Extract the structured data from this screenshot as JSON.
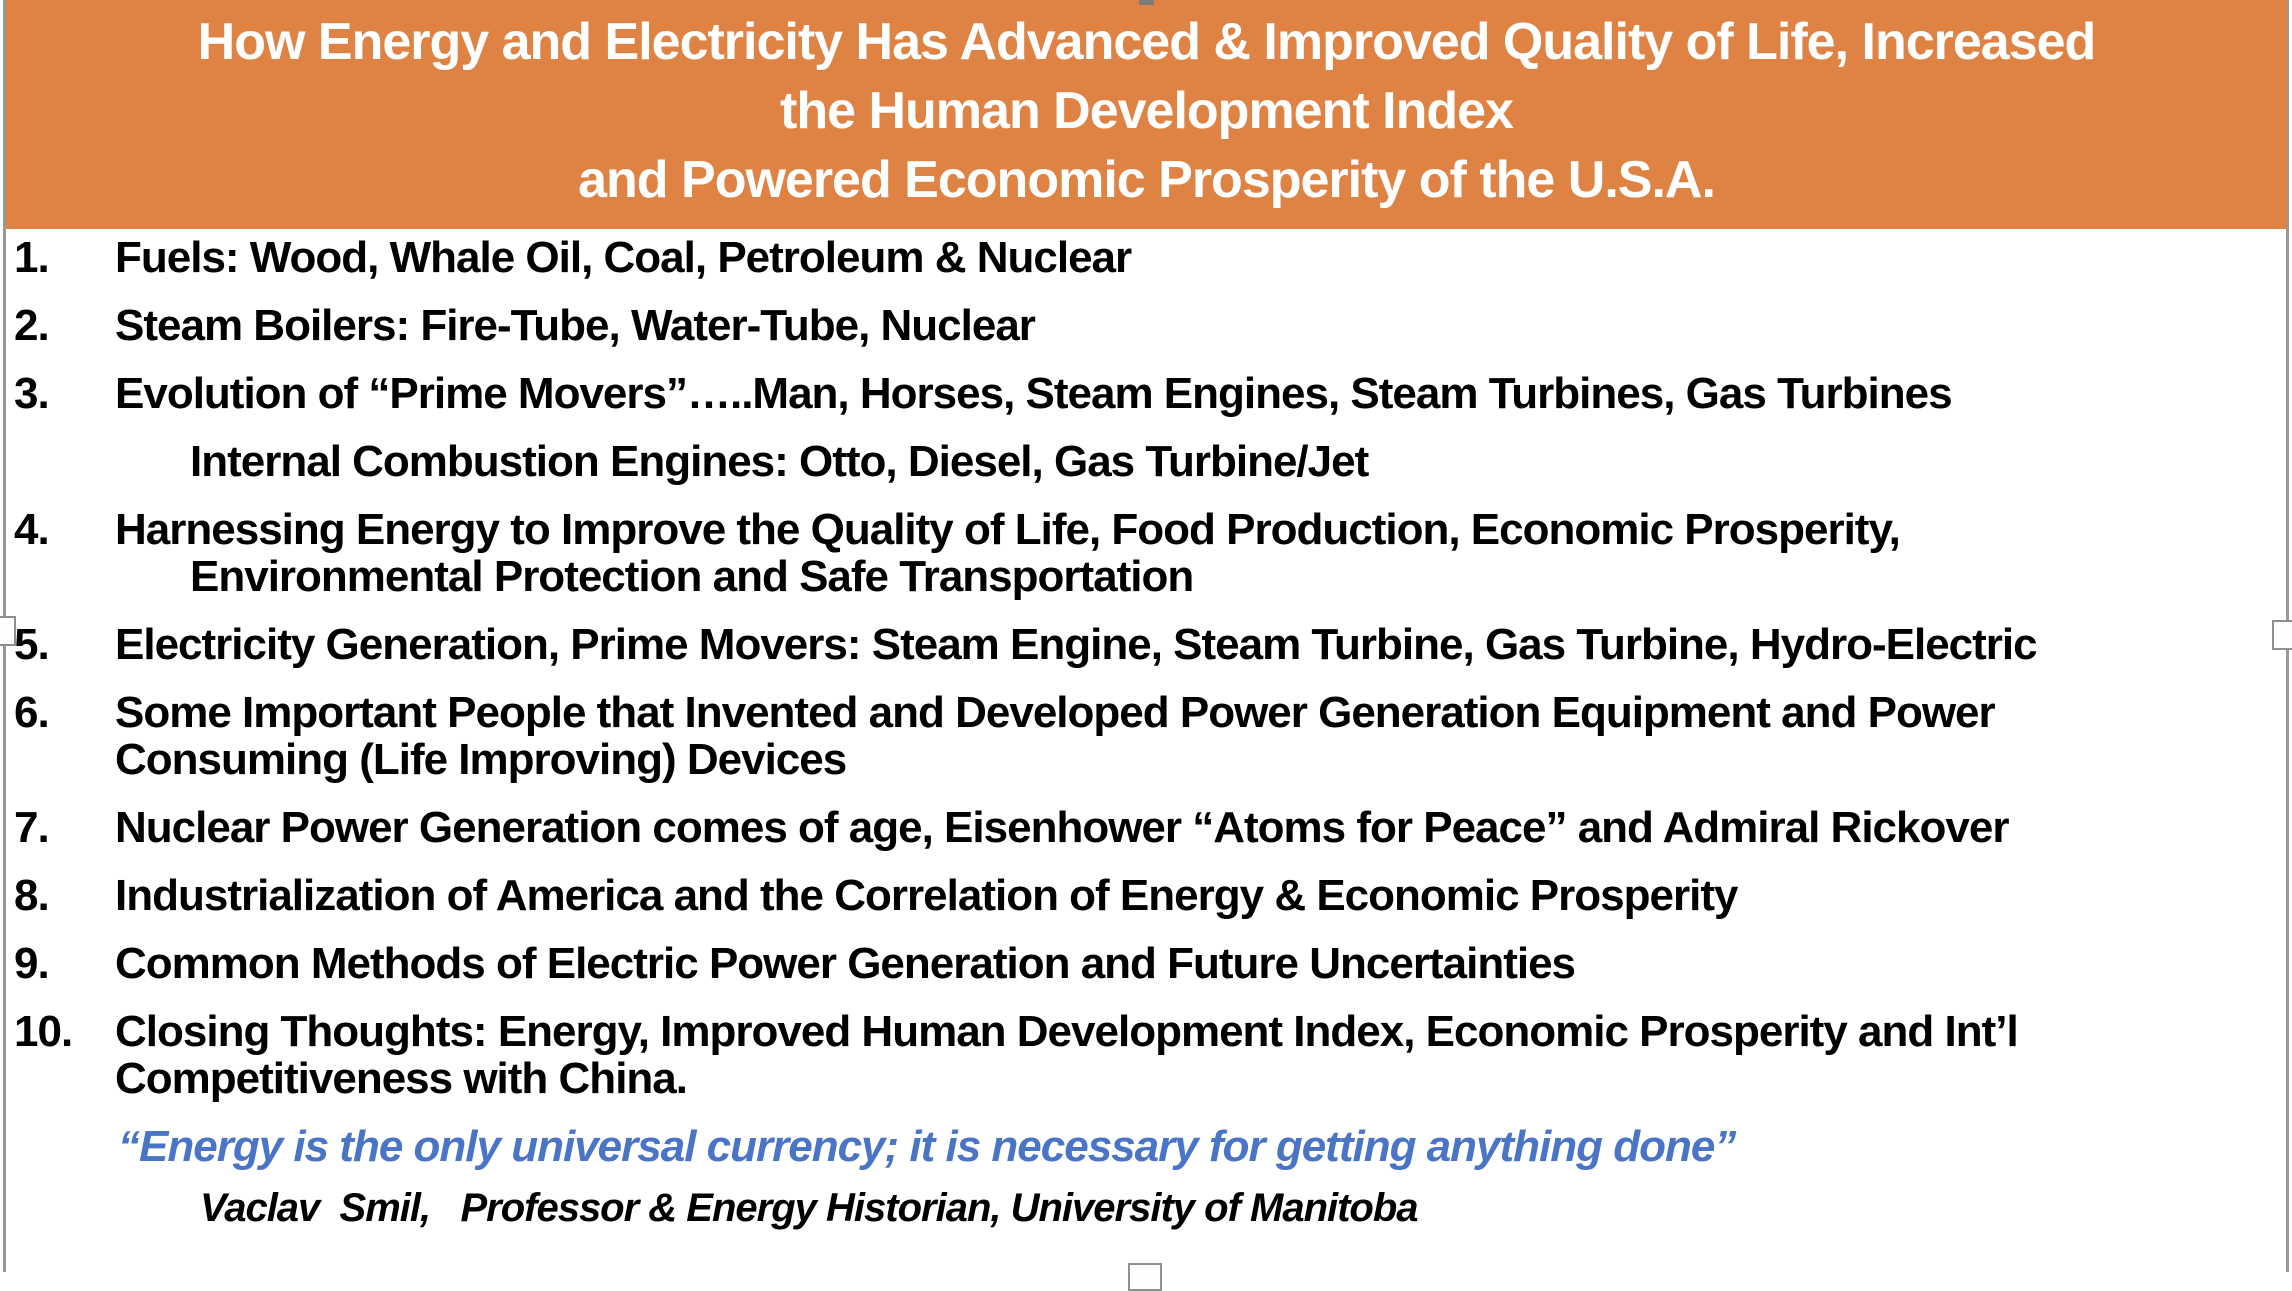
{
  "slide": {
    "title_lines": [
      "How Energy and Electricity Has Advanced & Improved Quality of Life, Increased",
      "the Human Development Index",
      "and Powered Economic Prosperity of the U.S.A."
    ],
    "items": [
      {
        "num": "1.",
        "lines": [
          {
            "t": "Fuels: Wood, Whale Oil, Coal, Petroleum & Nuclear",
            "ind": 0
          }
        ]
      },
      {
        "num": "2.",
        "lines": [
          {
            "t": "Steam Boilers: Fire-Tube, Water-Tube, Nuclear",
            "ind": 0
          }
        ]
      },
      {
        "num": "3.",
        "lines": [
          {
            "t": "Evolution of “Prime Movers”…..Man, Horses, Steam Engines, Steam Turbines, Gas Turbines",
            "ind": 0
          }
        ]
      },
      {
        "num": "",
        "lines": [
          {
            "t": "Internal Combustion Engines: Otto, Diesel, Gas Turbine/Jet",
            "ind": 1
          }
        ]
      },
      {
        "num": "4.",
        "lines": [
          {
            "t": "Harnessing Energy to Improve the Quality of Life, Food Production, Economic Prosperity,",
            "ind": 0
          },
          {
            "t": "Environmental Protection and Safe Transportation",
            "ind": 1
          }
        ]
      },
      {
        "num": "5.",
        "lines": [
          {
            "t": "Electricity Generation, Prime Movers: Steam Engine, Steam Turbine, Gas Turbine, Hydro-Electric",
            "ind": 0
          }
        ]
      },
      {
        "num": "6.",
        "lines": [
          {
            "t": "Some Important People that Invented and Developed Power Generation Equipment and Power",
            "ind": 0
          },
          {
            "t": "Consuming (Life Improving) Devices",
            "ind": 0
          }
        ]
      },
      {
        "num": "7.",
        "lines": [
          {
            "t": "Nuclear Power Generation comes of age, Eisenhower “Atoms for Peace” and Admiral Rickover",
            "ind": 0
          }
        ]
      },
      {
        "num": "8.",
        "lines": [
          {
            "t": "Industrialization of America and the Correlation of Energy & Economic Prosperity",
            "ind": 0
          }
        ]
      },
      {
        "num": "9.",
        "lines": [
          {
            "t": "Common Methods of Electric Power Generation and Future Uncertainties",
            "ind": 0
          }
        ]
      },
      {
        "num": "10.",
        "lines": [
          {
            "t": "Closing Thoughts: Energy, Improved Human Development Index, Economic Prosperity and Int’l",
            "ind": 0
          },
          {
            "t": "Competitiveness with China.",
            "ind": 0
          }
        ]
      }
    ],
    "quote": "“Energy is the only universal currency; it is necessary for getting anything done”",
    "attribution": "Vaclav  Smil,   Professor & Energy Historian, University of Manitoba",
    "colors": {
      "header_bg": "#DF8344",
      "quote_blue": "#4A74C6",
      "border_gray": "#979797",
      "title_text": "#FFFFFF",
      "body_text": "#000000"
    }
  }
}
